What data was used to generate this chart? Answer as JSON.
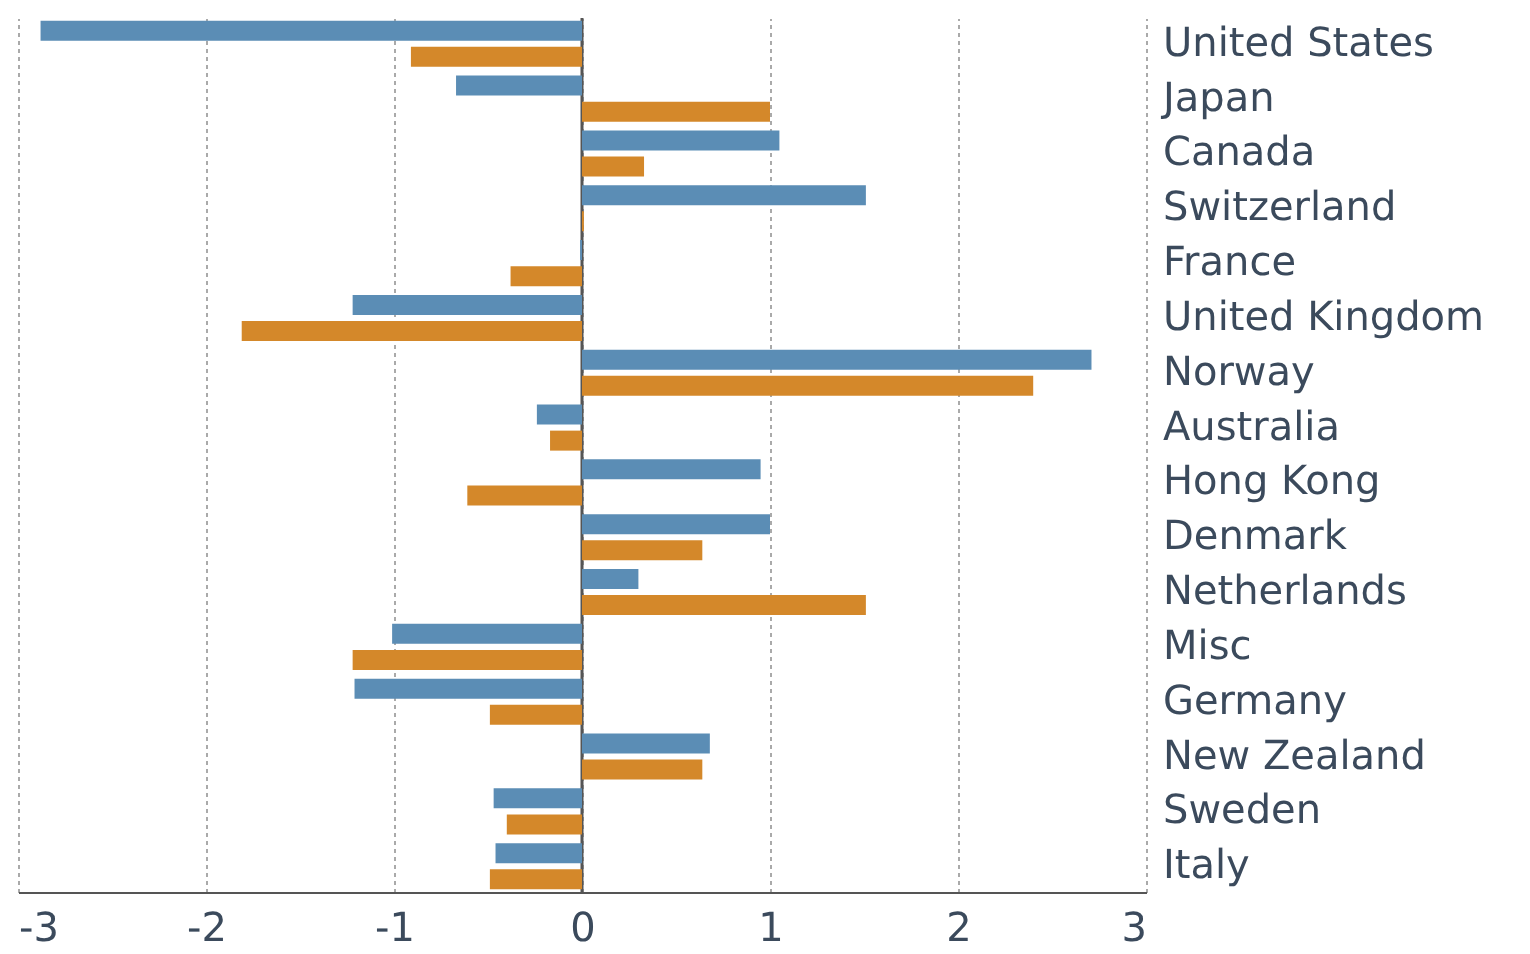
{
  "chart_data": {
    "type": "bar",
    "orientation": "horizontal",
    "categories": [
      "United States",
      "Japan",
      "Canada",
      "Switzerland",
      "France",
      "United Kingdom",
      "Norway",
      "Australia",
      "Hong Kong",
      "Denmark",
      "Netherlands",
      "Misc",
      "Germany",
      "New Zealand",
      "Sweden",
      "Italy"
    ],
    "series": [
      {
        "color": "#5b8db5",
        "values": [
          -2.88,
          -0.67,
          1.05,
          1.51,
          -0.01,
          -1.22,
          2.71,
          -0.24,
          0.95,
          1.0,
          0.3,
          -1.01,
          -1.21,
          0.68,
          -0.47,
          -0.46
        ]
      },
      {
        "color": "#d4882a",
        "values": [
          -0.91,
          1.0,
          0.33,
          0.01,
          -0.38,
          -1.81,
          2.4,
          -0.17,
          -0.61,
          0.64,
          1.51,
          -1.22,
          -0.49,
          0.64,
          -0.4,
          -0.49
        ]
      }
    ],
    "xlim": [
      -3,
      3
    ],
    "xticks": [
      -3,
      -2,
      -1,
      0,
      1,
      2,
      3
    ],
    "grid": "x",
    "legend": false,
    "ref_lines": [
      {
        "axis": "x",
        "value": 0,
        "color": "#555555"
      }
    ]
  }
}
